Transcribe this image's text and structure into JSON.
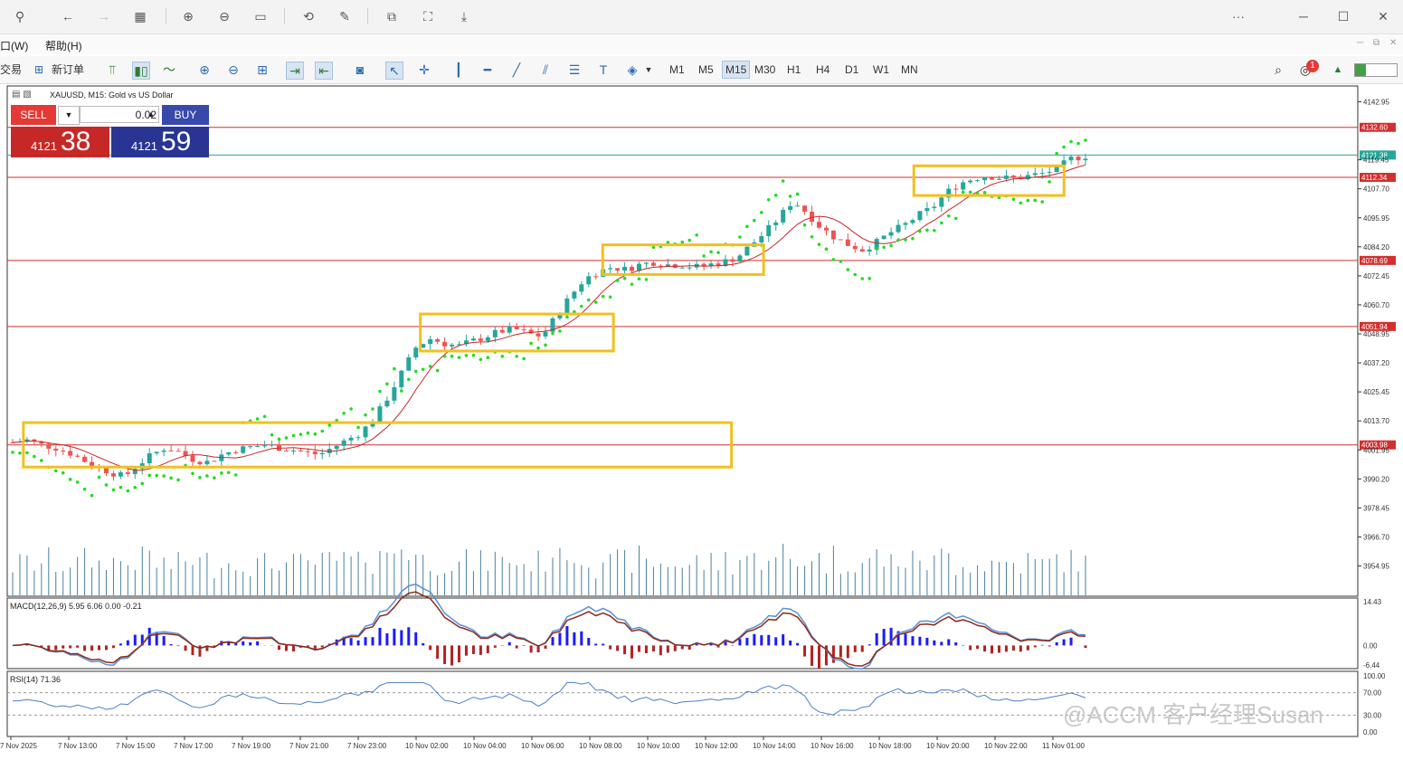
{
  "window": {
    "more_label": "···",
    "minimize_label": "─",
    "maximize_label": "☐",
    "close_label": "✕"
  },
  "menu": {
    "items": [
      {
        "label": "口(W)"
      },
      {
        "label": "帮助(H)"
      }
    ]
  },
  "toolbar": {
    "trade_label": "交易",
    "new_order_label": "新订单",
    "timeframes": [
      "M1",
      "M5",
      "M15",
      "M30",
      "H1",
      "H4",
      "D1",
      "W1",
      "MN"
    ],
    "active_timeframe": "M15",
    "notification_count": "1"
  },
  "chart": {
    "title": "XAUUSD, M15:  Gold vs US Dollar",
    "trade_panel": {
      "sell_label": "SELL",
      "buy_label": "BUY",
      "lot_value": "0.02",
      "bid_prefix": "4121",
      "bid_big": "38",
      "ask_prefix": "4121",
      "ask_big": "59"
    },
    "macd_label": "MACD(12,26,9) 5.95 6.06 0.00 -0.21",
    "rsi_label": "RSI(14) 71.36",
    "watermark": "@ACCM 客户经理Susan"
  },
  "chart_data": {
    "type": "candlestick",
    "symbol": "XAUUSD",
    "timeframe": "M15",
    "price_axis_ticks": [
      4142.95,
      4119.45,
      4107.7,
      4095.95,
      4084.2,
      4072.45,
      4060.7,
      4048.95,
      4037.2,
      4025.45,
      4013.7,
      4001.95,
      3990.2,
      3978.45,
      3966.7,
      3954.95
    ],
    "horizontal_levels": [
      {
        "price": 4132.6,
        "label": "4132.60",
        "color": "#d32f2f"
      },
      {
        "price": 4121.38,
        "label": "4121.38",
        "color": "#26a69a"
      },
      {
        "price": 4112.34,
        "label": "4112.34",
        "color": "#d32f2f"
      },
      {
        "price": 4078.69,
        "label": "4078.69",
        "color": "#d32f2f"
      },
      {
        "price": 4051.94,
        "label": "4051.94",
        "color": "#d32f2f"
      },
      {
        "price": 4003.98,
        "label": "4003.98",
        "color": "#d32f2f"
      }
    ],
    "time_axis_labels": [
      "7 Nov 2025",
      "7 Nov 13:00",
      "7 Nov 15:00",
      "7 Nov 17:00",
      "7 Nov 19:00",
      "7 Nov 21:00",
      "7 Nov 23:00",
      "10 Nov 02:00",
      "10 Nov 04:00",
      "10 Nov 06:00",
      "10 Nov 08:00",
      "10 Nov 10:00",
      "10 Nov 12:00",
      "10 Nov 14:00",
      "10 Nov 16:00",
      "10 Nov 18:00",
      "10 Nov 20:00",
      "10 Nov 22:00",
      "11 Nov 01:00"
    ],
    "close_path": [
      4005,
      4006,
      4004,
      4003,
      4001,
      3998,
      3995,
      3993,
      3991,
      3996,
      4000,
      4003,
      4001,
      3998,
      3997,
      4000,
      4002,
      4003,
      4004,
      4003,
      4002,
      4001,
      4000,
      4003,
      4006,
      4009,
      4015,
      4024,
      4034,
      4044,
      4047,
      4045,
      4044,
      4046,
      4048,
      4050,
      4051,
      4049,
      4048,
      4056,
      4064,
      4071,
      4074,
      4076,
      4075,
      4077,
      4078,
      4077,
      4077,
      4076,
      4077,
      4078,
      4080,
      4085,
      4090,
      4096,
      4103,
      4098,
      4092,
      4088,
      4085,
      4083,
      4086,
      4090,
      4093,
      4097,
      4100,
      4106,
      4110,
      4112,
      4113,
      4112,
      4112,
      4113,
      4114,
      4116,
      4120,
      4121
    ],
    "macd_axis_ticks": [
      14.43,
      0.0,
      -6.44
    ],
    "rsi_axis_ticks": [
      100.0,
      70.0,
      30.0,
      0.0
    ],
    "rsi_value": 71.36
  }
}
